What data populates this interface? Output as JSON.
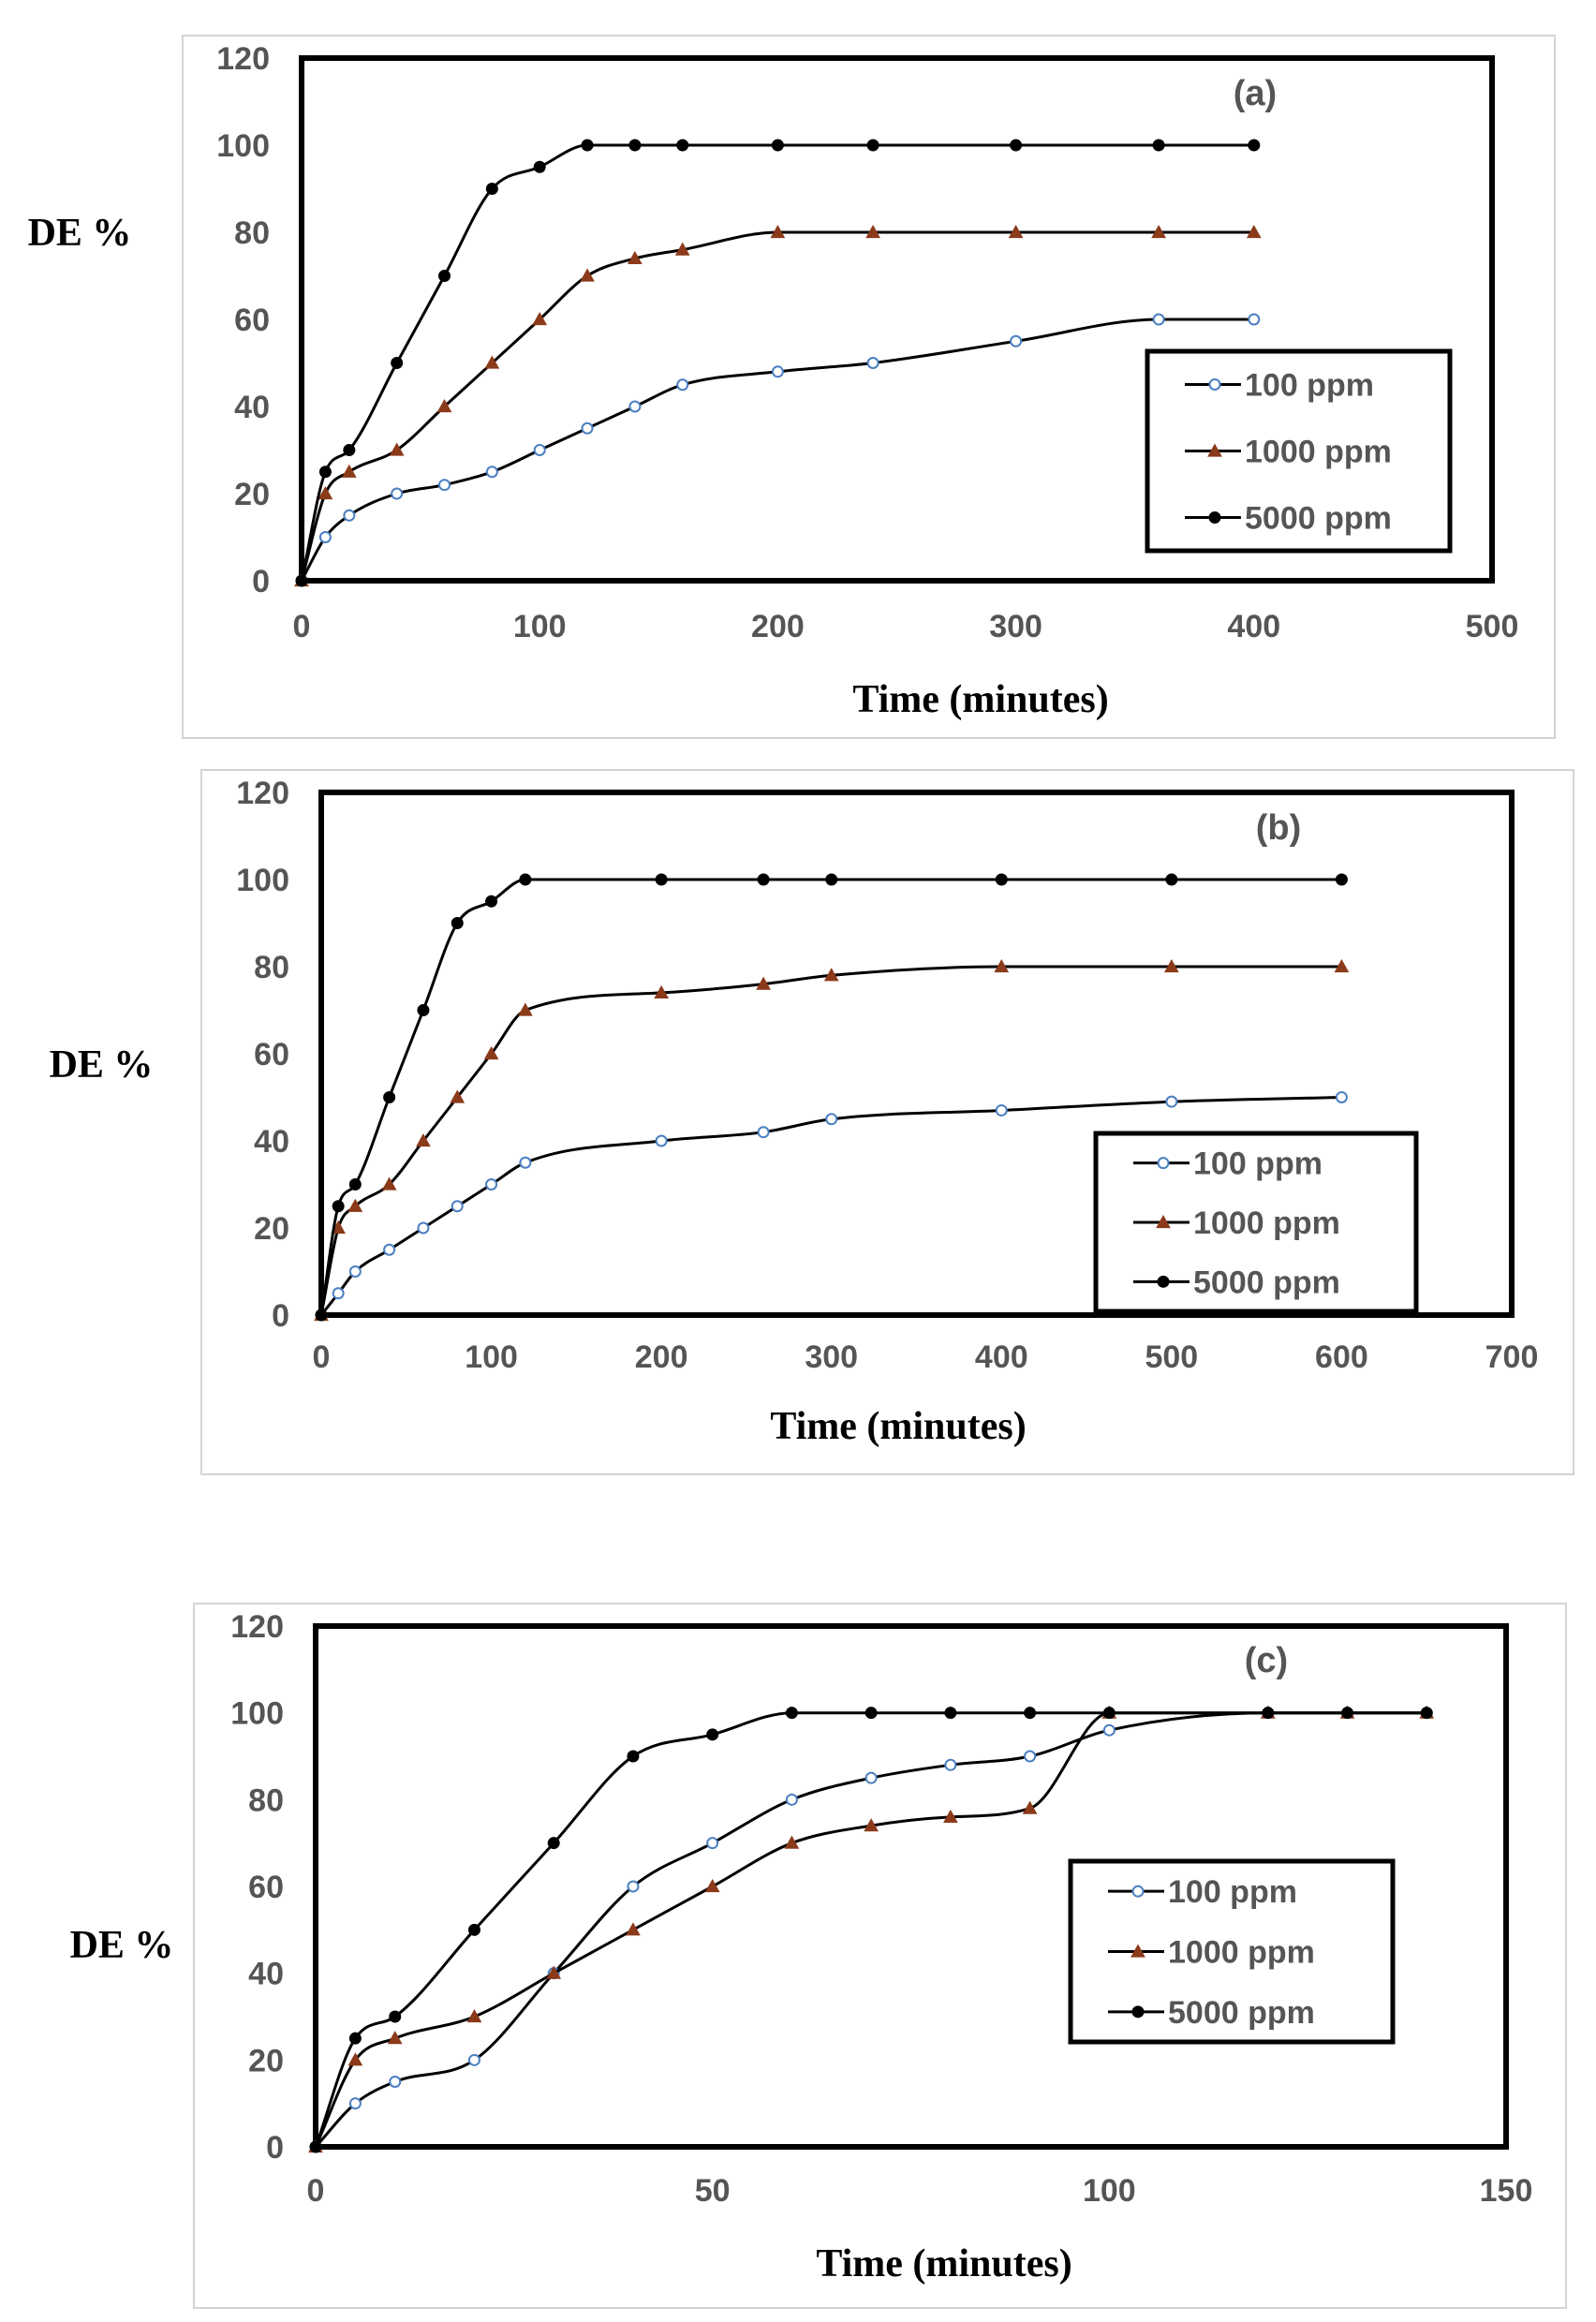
{
  "chart_data": [
    {
      "type": "line",
      "panel_label": "(a)",
      "xlabel": "Time (minutes)",
      "ylabel": "DE %",
      "xlim": [
        0,
        500
      ],
      "ylim": [
        0,
        120
      ],
      "xticks": [
        0,
        100,
        200,
        300,
        400,
        500
      ],
      "yticks": [
        0,
        20,
        40,
        60,
        80,
        100,
        120
      ],
      "legend_position": "right-middle",
      "series": [
        {
          "name": "100 ppm",
          "marker": "circle-open",
          "color": "#4a7fc1",
          "x": [
            0,
            10,
            20,
            40,
            60,
            80,
            100,
            120,
            140,
            160,
            200,
            240,
            300,
            360,
            400
          ],
          "y": [
            0,
            10,
            15,
            20,
            22,
            25,
            30,
            35,
            40,
            45,
            48,
            50,
            55,
            60,
            60
          ]
        },
        {
          "name": "1000 ppm",
          "marker": "triangle",
          "color": "#8b3a1a",
          "x": [
            0,
            10,
            20,
            40,
            60,
            80,
            100,
            120,
            140,
            160,
            200,
            240,
            300,
            360,
            400
          ],
          "y": [
            0,
            20,
            25,
            30,
            40,
            50,
            60,
            70,
            74,
            76,
            80,
            80,
            80,
            80,
            80
          ]
        },
        {
          "name": "5000 ppm",
          "marker": "circle",
          "color": "#000000",
          "x": [
            0,
            10,
            20,
            40,
            60,
            80,
            100,
            120,
            140,
            160,
            200,
            240,
            300,
            360,
            400
          ],
          "y": [
            0,
            25,
            30,
            50,
            70,
            90,
            95,
            100,
            100,
            100,
            100,
            100,
            100,
            100,
            100
          ]
        }
      ]
    },
    {
      "type": "line",
      "panel_label": "(b)",
      "xlabel": "Time (minutes)",
      "ylabel": "DE %",
      "xlim": [
        0,
        700
      ],
      "ylim": [
        0,
        120
      ],
      "xticks": [
        0,
        100,
        200,
        300,
        400,
        500,
        600,
        700
      ],
      "yticks": [
        0,
        20,
        40,
        60,
        80,
        100,
        120
      ],
      "legend_position": "bottom-right",
      "series": [
        {
          "name": "100 ppm",
          "marker": "circle-open",
          "color": "#4a7fc1",
          "x": [
            0,
            10,
            20,
            40,
            60,
            80,
            100,
            120,
            200,
            260,
            300,
            400,
            500,
            600
          ],
          "y": [
            0,
            5,
            10,
            15,
            20,
            25,
            30,
            35,
            40,
            42,
            45,
            47,
            49,
            50
          ]
        },
        {
          "name": "1000 ppm",
          "marker": "triangle",
          "color": "#8b3a1a",
          "x": [
            0,
            10,
            20,
            40,
            60,
            80,
            100,
            120,
            200,
            260,
            300,
            400,
            500,
            600
          ],
          "y": [
            0,
            20,
            25,
            30,
            40,
            50,
            60,
            70,
            74,
            76,
            78,
            80,
            80,
            80
          ]
        },
        {
          "name": "5000 ppm",
          "marker": "circle",
          "color": "#000000",
          "x": [
            0,
            10,
            20,
            40,
            60,
            80,
            100,
            120,
            200,
            260,
            300,
            400,
            500,
            600
          ],
          "y": [
            0,
            25,
            30,
            50,
            70,
            90,
            95,
            100,
            100,
            100,
            100,
            100,
            100,
            100
          ]
        }
      ]
    },
    {
      "type": "line",
      "panel_label": "(c)",
      "xlabel": "Time (minutes)",
      "ylabel": "DE %",
      "xlim": [
        0,
        150
      ],
      "ylim": [
        0,
        120
      ],
      "xticks": [
        0,
        50,
        100,
        150
      ],
      "yticks": [
        0,
        20,
        40,
        60,
        80,
        100,
        120
      ],
      "legend_position": "right-middle",
      "series": [
        {
          "name": "100 ppm",
          "marker": "circle-open",
          "color": "#4a7fc1",
          "x": [
            0,
            5,
            10,
            20,
            30,
            40,
            50,
            60,
            70,
            80,
            90,
            100,
            120,
            130,
            140
          ],
          "y": [
            0,
            10,
            15,
            20,
            40,
            60,
            70,
            80,
            85,
            88,
            90,
            96,
            100,
            100,
            100
          ]
        },
        {
          "name": "1000 ppm",
          "marker": "triangle",
          "color": "#8b3a1a",
          "x": [
            0,
            5,
            10,
            20,
            30,
            40,
            50,
            60,
            70,
            80,
            90,
            100,
            120,
            130,
            140
          ],
          "y": [
            0,
            20,
            25,
            30,
            40,
            50,
            60,
            70,
            74,
            76,
            78,
            100,
            100,
            100,
            100
          ]
        },
        {
          "name": "5000 ppm",
          "marker": "circle",
          "color": "#000000",
          "x": [
            0,
            5,
            10,
            20,
            30,
            40,
            50,
            60,
            70,
            80,
            90,
            100,
            120,
            130,
            140
          ],
          "y": [
            0,
            25,
            30,
            50,
            70,
            90,
            95,
            100,
            100,
            100,
            100,
            100,
            100,
            100,
            100
          ]
        }
      ]
    }
  ]
}
